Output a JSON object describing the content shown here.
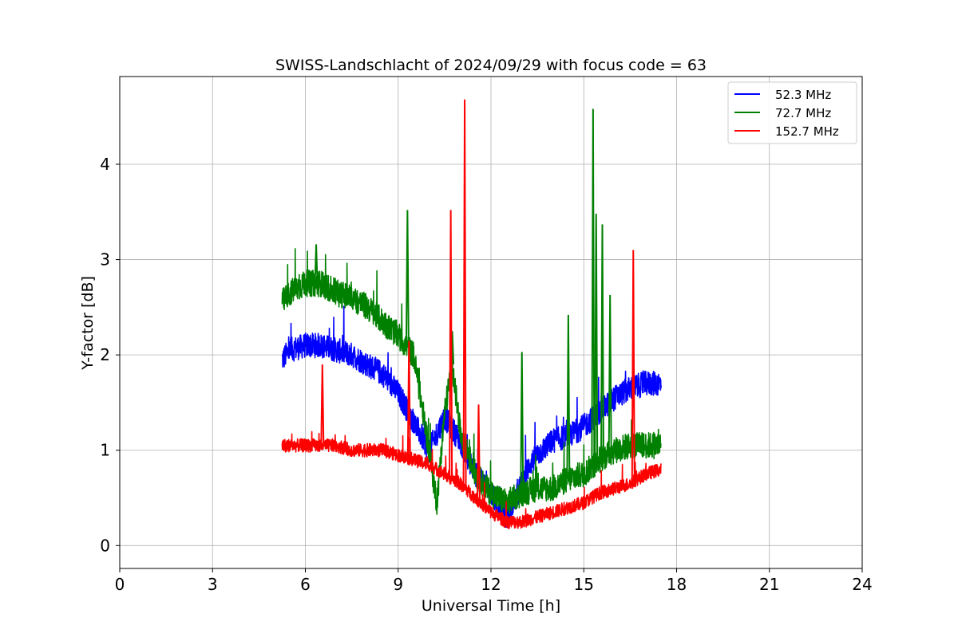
{
  "chart_data": {
    "type": "line",
    "title": "SWISS-Landschlacht of 2024/09/29 with focus code = 63",
    "xlabel": "Universal Time [h]",
    "ylabel": "Y-factor [dB]",
    "xlim": [
      0,
      24
    ],
    "ylim": [
      -0.24,
      4.92
    ],
    "xticks": [
      0,
      3,
      6,
      9,
      12,
      15,
      18,
      21,
      24
    ],
    "xtick_labels": [
      "0",
      "3",
      "6",
      "9",
      "12",
      "15",
      "18",
      "21",
      "24"
    ],
    "yticks": [
      0,
      1,
      2,
      3,
      4
    ],
    "ytick_labels": [
      "0",
      "1",
      "2",
      "3",
      "4"
    ],
    "grid": true,
    "legend_position": "top-right",
    "series": [
      {
        "name": "52.3 MHz",
        "color": "#0000ff",
        "x": [
          5.25,
          5.5,
          6.0,
          6.5,
          7.0,
          7.5,
          8.0,
          8.5,
          9.0,
          9.5,
          10.0,
          10.5,
          11.0,
          11.5,
          12.0,
          12.25,
          12.5,
          12.75,
          13.0,
          13.25,
          13.5,
          14.0,
          14.5,
          15.0,
          15.5,
          16.0,
          16.5,
          17.0,
          17.5
        ],
        "values": [
          1.95,
          2.05,
          2.1,
          2.1,
          2.05,
          2.0,
          1.9,
          1.8,
          1.6,
          1.3,
          1.0,
          1.35,
          1.1,
          0.75,
          0.55,
          0.4,
          0.3,
          0.45,
          0.65,
          0.85,
          0.95,
          1.1,
          1.15,
          1.25,
          1.4,
          1.55,
          1.65,
          1.7,
          1.7
        ]
      },
      {
        "name": "72.7 MHz",
        "color": "#008000",
        "x": [
          5.25,
          5.5,
          6.0,
          6.5,
          7.0,
          7.5,
          8.0,
          8.5,
          9.0,
          9.5,
          10.0,
          10.25,
          10.5,
          10.75,
          11.0,
          11.5,
          12.0,
          12.5,
          13.0,
          13.5,
          14.0,
          14.5,
          15.0,
          15.5,
          16.0,
          16.5,
          17.0,
          17.5
        ],
        "values": [
          2.55,
          2.65,
          2.75,
          2.75,
          2.65,
          2.6,
          2.5,
          2.35,
          2.2,
          2.0,
          1.0,
          0.45,
          1.4,
          1.9,
          1.2,
          0.75,
          0.55,
          0.45,
          0.55,
          0.6,
          0.6,
          0.7,
          0.75,
          0.9,
          1.0,
          1.05,
          1.05,
          1.05
        ]
      },
      {
        "name": "152.7 MHz",
        "color": "#ff0000",
        "x": [
          5.25,
          5.5,
          6.0,
          6.5,
          7.0,
          7.5,
          8.0,
          8.5,
          9.0,
          9.5,
          10.0,
          10.5,
          11.0,
          11.5,
          12.0,
          12.5,
          13.0,
          13.5,
          14.0,
          14.5,
          15.0,
          15.5,
          16.0,
          16.5,
          17.0,
          17.5
        ],
        "values": [
          1.05,
          1.05,
          1.05,
          1.05,
          1.05,
          1.0,
          1.0,
          1.0,
          0.95,
          0.9,
          0.85,
          0.75,
          0.65,
          0.5,
          0.35,
          0.25,
          0.25,
          0.3,
          0.35,
          0.4,
          0.45,
          0.55,
          0.6,
          0.65,
          0.75,
          0.8
        ]
      }
    ],
    "spikes": [
      {
        "series": 1,
        "x": 9.3,
        "peak": 3.52
      },
      {
        "series": 1,
        "x": 10.75,
        "peak": 2.25
      },
      {
        "series": 1,
        "x": 13.0,
        "peak": 2.03
      },
      {
        "series": 1,
        "x": 14.5,
        "peak": 2.42
      },
      {
        "series": 1,
        "x": 15.3,
        "peak": 4.58
      },
      {
        "series": 1,
        "x": 15.4,
        "peak": 3.48
      },
      {
        "series": 1,
        "x": 15.6,
        "peak": 3.37
      },
      {
        "series": 1,
        "x": 15.85,
        "peak": 2.63
      },
      {
        "series": 1,
        "x": 6.35,
        "peak": 3.16
      },
      {
        "series": 2,
        "x": 10.7,
        "peak": 3.52
      },
      {
        "series": 2,
        "x": 11.15,
        "peak": 4.68
      },
      {
        "series": 2,
        "x": 16.6,
        "peak": 3.1
      },
      {
        "series": 2,
        "x": 9.35,
        "peak": 2.15
      },
      {
        "series": 2,
        "x": 6.55,
        "peak": 1.9
      },
      {
        "series": 2,
        "x": 11.6,
        "peak": 1.48
      }
    ]
  }
}
